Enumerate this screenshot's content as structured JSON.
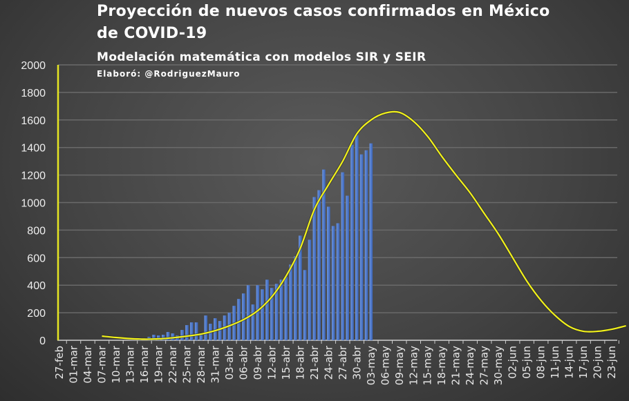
{
  "chart_data": {
    "type": "bar+line",
    "title": "Proyección de nuevos casos confirmados en México",
    "title_line2": "de COVID-19",
    "subtitle": "Modelación matemática con modelos SIR y SEIR",
    "credit": "Elaboró: @RodriguezMauro",
    "xlabel": "",
    "ylabel": "",
    "ylim": [
      0,
      2000
    ],
    "y_ticks": [
      "0",
      "200",
      "400",
      "600",
      "800",
      "1000",
      "1200",
      "1400",
      "1600",
      "1800",
      "2000"
    ],
    "x_ticks": [
      "27-feb",
      "01-mar",
      "04-mar",
      "07-mar",
      "10-mar",
      "13-mar",
      "16-mar",
      "19-mar",
      "22-mar",
      "25-mar",
      "28-mar",
      "31-mar",
      "03-abr",
      "06-abr",
      "09-abr",
      "12-abr",
      "15-abr",
      "18-abr",
      "21-abr",
      "24-abr",
      "27-abr",
      "30-abr",
      "03-may",
      "06-may",
      "09-may",
      "12-may",
      "15-may",
      "18-may",
      "21-may",
      "24-may",
      "27-may",
      "30-may",
      "02-jun",
      "05-jun",
      "08-jun",
      "11-jun",
      "14-jun",
      "17-jun",
      "20-jun",
      "23-jun"
    ],
    "grid": true,
    "legend": "none",
    "colors": {
      "bars": "#4472c4",
      "curve": "#f2f21a",
      "axis_left": "#e6e622",
      "grid": "#6a6a6a",
      "text": "#ffffff"
    },
    "bars": {
      "dates": [
        "15-mar",
        "16-mar",
        "17-mar",
        "18-mar",
        "19-mar",
        "20-mar",
        "21-mar",
        "22-mar",
        "23-mar",
        "24-mar",
        "25-mar",
        "26-mar",
        "27-mar",
        "28-mar",
        "29-mar",
        "30-mar",
        "31-mar",
        "01-abr",
        "02-abr",
        "03-abr",
        "04-abr",
        "05-abr",
        "06-abr",
        "07-abr",
        "08-abr",
        "09-abr",
        "10-abr",
        "11-abr",
        "12-abr",
        "13-abr",
        "14-abr",
        "15-abr",
        "16-abr",
        "17-abr",
        "18-abr",
        "19-abr",
        "20-abr",
        "21-abr",
        "22-abr",
        "23-abr",
        "24-abr",
        "25-abr",
        "26-abr",
        "27-abr",
        "28-abr",
        "29-abr",
        "30-abr",
        "01-may",
        "02-may",
        "03-may"
      ],
      "values": [
        10,
        0,
        25,
        40,
        35,
        40,
        60,
        50,
        35,
        75,
        110,
        130,
        130,
        50,
        180,
        120,
        160,
        140,
        180,
        200,
        250,
        300,
        340,
        400,
        260,
        400,
        370,
        440,
        380,
        410,
        440,
        460,
        550,
        610,
        760,
        510,
        730,
        1040,
        1090,
        1240,
        970,
        830,
        850,
        1220,
        1050,
        1420,
        1490,
        1350,
        1380,
        1430
      ]
    },
    "curve": {
      "dates": [
        "07-mar",
        "10-mar",
        "13-mar",
        "16-mar",
        "19-mar",
        "22-mar",
        "25-mar",
        "28-mar",
        "31-mar",
        "03-abr",
        "06-abr",
        "09-abr",
        "12-abr",
        "15-abr",
        "18-abr",
        "21-abr",
        "24-abr",
        "27-abr",
        "30-abr",
        "03-may",
        "06-may",
        "09-may",
        "12-may",
        "15-may",
        "18-may",
        "21-may",
        "24-may",
        "27-may",
        "30-may",
        "02-jun",
        "05-jun",
        "08-jun",
        "11-jun",
        "14-jun",
        "17-jun",
        "20-jun",
        "23-jun",
        "26-jun"
      ],
      "values": [
        30,
        20,
        12,
        8,
        10,
        18,
        30,
        45,
        70,
        105,
        150,
        215,
        316,
        466,
        667,
        950,
        1130,
        1300,
        1500,
        1600,
        1650,
        1655,
        1590,
        1480,
        1335,
        1200,
        1070,
        920,
        770,
        600,
        430,
        290,
        180,
        100,
        65,
        65,
        80,
        105
      ]
    }
  }
}
